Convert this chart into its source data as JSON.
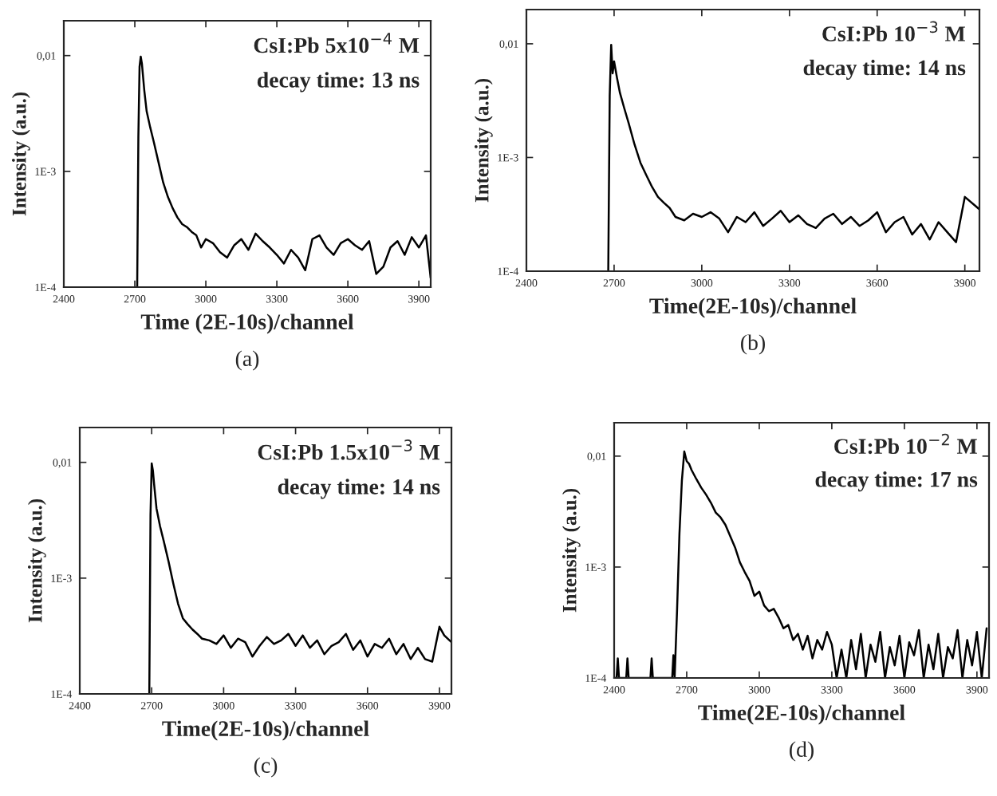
{
  "chart_data": [
    {
      "type": "line",
      "xlabel": "Time (2E-10s)/channel",
      "ylabel": "Intensity (a.u.)",
      "log": "y",
      "grid": false,
      "xlim": [
        2400,
        3950
      ],
      "ylim": [
        0.0001,
        0.02
      ],
      "xticks": [
        2400,
        2700,
        3000,
        3300,
        3600,
        3900
      ],
      "yticks": [
        {
          "value": 0.0001,
          "label": "1E-4"
        },
        {
          "value": 0.001,
          "label": "1E-3"
        },
        {
          "value": 0.01,
          "label": "0,01"
        }
      ],
      "annotations": [
        "CsI:Pb 5x10$^{−4}$ M",
        "decay time: 13 ns",
        "(a)"
      ],
      "series": [
        {
          "color": "#000000",
          "x": [
            2710,
            2715,
            2720,
            2725,
            2730,
            2740,
            2750,
            2765,
            2780,
            2800,
            2820,
            2840,
            2860,
            2880,
            2900,
            2920,
            2940,
            2960,
            2980,
            3000,
            3030,
            3060,
            3090,
            3120,
            3150,
            3180,
            3210,
            3240,
            3270,
            3300,
            3330,
            3360,
            3390,
            3420,
            3450,
            3480,
            3510,
            3540,
            3570,
            3600,
            3630,
            3660,
            3690,
            3720,
            3750,
            3780,
            3810,
            3840,
            3870,
            3900,
            3930,
            3950
          ],
          "values": [
            0.0001,
            0.002,
            0.008,
            0.0098,
            0.0085,
            0.005,
            0.0033,
            0.0024,
            0.0018,
            0.0012,
            0.0008,
            0.0006,
            0.00048,
            0.0004,
            0.00035,
            0.00033,
            0.0003,
            0.00028,
            0.00022,
            0.00026,
            0.00024,
            0.0002,
            0.00018,
            0.00023,
            0.00026,
            0.00021,
            0.00029,
            0.00025,
            0.00022,
            0.00019,
            0.00016,
            0.00021,
            0.00018,
            0.00014,
            0.00026,
            0.00028,
            0.00022,
            0.00019,
            0.00024,
            0.00026,
            0.00023,
            0.00021,
            0.00025,
            0.00013,
            0.00015,
            0.00022,
            0.00025,
            0.00019,
            0.00027,
            0.00022,
            0.00028,
            0.00012
          ]
        }
      ]
    },
    {
      "type": "line",
      "xlabel": "Time(2E-10s)/channel",
      "ylabel": "Intensity (a.u.)",
      "log": "y",
      "grid": false,
      "xlim": [
        2400,
        3950
      ],
      "ylim": [
        0.0001,
        0.02
      ],
      "xticks": [
        2400,
        2700,
        3000,
        3300,
        3600,
        3900
      ],
      "yticks": [
        {
          "value": 0.0001,
          "label": "1E-4"
        },
        {
          "value": 0.001,
          "label": "1E-3"
        },
        {
          "value": 0.01,
          "label": "0,01"
        }
      ],
      "annotations": [
        "CsI:Pb 10$^{−3}$ M",
        "decay time: 14 ns",
        "(b)"
      ],
      "series": [
        {
          "color": "#000000",
          "x": [
            2680,
            2685,
            2690,
            2695,
            2700,
            2710,
            2720,
            2735,
            2750,
            2770,
            2790,
            2810,
            2830,
            2850,
            2870,
            2890,
            2910,
            2940,
            2970,
            3000,
            3030,
            3060,
            3090,
            3120,
            3150,
            3180,
            3210,
            3240,
            3270,
            3300,
            3330,
            3360,
            3390,
            3420,
            3450,
            3480,
            3510,
            3540,
            3570,
            3600,
            3630,
            3660,
            3690,
            3720,
            3750,
            3780,
            3810,
            3840,
            3870,
            3900,
            3950
          ],
          "values": [
            0.0001,
            0.0035,
            0.0098,
            0.0055,
            0.007,
            0.005,
            0.0037,
            0.0027,
            0.002,
            0.0013,
            0.0009,
            0.0007,
            0.00055,
            0.00045,
            0.0004,
            0.00036,
            0.0003,
            0.00028,
            0.00032,
            0.0003,
            0.00033,
            0.00029,
            0.00022,
            0.0003,
            0.00027,
            0.00033,
            0.00025,
            0.00029,
            0.00034,
            0.00027,
            0.00031,
            0.00026,
            0.00024,
            0.00029,
            0.00032,
            0.00026,
            0.0003,
            0.00025,
            0.00028,
            0.00033,
            0.00022,
            0.00027,
            0.0003,
            0.00021,
            0.00026,
            0.00019,
            0.00027,
            0.00022,
            0.00018,
            0.00045,
            0.00035
          ]
        }
      ]
    },
    {
      "type": "line",
      "xlabel": "Time(2E-10s)/channel",
      "ylabel": "Intensity (a.u.)",
      "log": "y",
      "grid": false,
      "xlim": [
        2400,
        3950
      ],
      "ylim": [
        0.0001,
        0.02
      ],
      "xticks": [
        2400,
        2700,
        3000,
        3300,
        3600,
        3900
      ],
      "yticks": [
        {
          "value": 0.0001,
          "label": "1E-4"
        },
        {
          "value": 0.001,
          "label": "1E-3"
        },
        {
          "value": 0.01,
          "label": "0,01"
        }
      ],
      "annotations": [
        "CsI:Pb 1.5x10$^{−3}$ M",
        "decay time: 14 ns",
        "(c)"
      ],
      "series": [
        {
          "color": "#000000",
          "x": [
            2690,
            2695,
            2700,
            2705,
            2710,
            2720,
            2735,
            2750,
            2770,
            2790,
            2810,
            2830,
            2850,
            2870,
            2890,
            2910,
            2940,
            2970,
            3000,
            3030,
            3060,
            3090,
            3120,
            3150,
            3180,
            3210,
            3240,
            3270,
            3300,
            3330,
            3360,
            3390,
            3420,
            3450,
            3480,
            3510,
            3540,
            3570,
            3600,
            3630,
            3660,
            3690,
            3720,
            3750,
            3780,
            3810,
            3840,
            3870,
            3900,
            3920,
            3950
          ],
          "values": [
            0.0001,
            0.0035,
            0.0098,
            0.0085,
            0.0065,
            0.004,
            0.0028,
            0.0021,
            0.0014,
            0.0009,
            0.0006,
            0.00045,
            0.0004,
            0.00036,
            0.00033,
            0.0003,
            0.00029,
            0.00027,
            0.00032,
            0.00025,
            0.0003,
            0.00028,
            0.00021,
            0.00026,
            0.00031,
            0.00027,
            0.00029,
            0.00033,
            0.00026,
            0.00032,
            0.00025,
            0.00029,
            0.00022,
            0.00026,
            0.00028,
            0.00033,
            0.00024,
            0.00029,
            0.00021,
            0.00027,
            0.00025,
            0.0003,
            0.00022,
            0.00027,
            0.0002,
            0.00025,
            0.0002,
            0.00019,
            0.00038,
            0.00032,
            0.00028
          ]
        }
      ]
    },
    {
      "type": "line",
      "xlabel": "Time(2E-10s)/channel",
      "ylabel": "Intensity (a.u.)",
      "log": "y",
      "grid": false,
      "xlim": [
        2400,
        3950
      ],
      "ylim": [
        0.0001,
        0.02
      ],
      "xticks": [
        2400,
        2700,
        3000,
        3300,
        3600,
        3900
      ],
      "yticks": [
        {
          "value": 0.0001,
          "label": "1E-4"
        },
        {
          "value": 0.001,
          "label": "1E-3"
        },
        {
          "value": 0.01,
          "label": "0,01"
        }
      ],
      "annotations": [
        "CsI:Pb 10$^{−2}$ M",
        "decay time: 17 ns",
        "(d)"
      ],
      "series": [
        {
          "color": "#000000",
          "x": [
            2400,
            2410,
            2415,
            2420,
            2450,
            2455,
            2460,
            2550,
            2555,
            2560,
            2640,
            2645,
            2650,
            2660,
            2670,
            2680,
            2690,
            2700,
            2710,
            2720,
            2740,
            2760,
            2780,
            2800,
            2820,
            2840,
            2860,
            2880,
            2900,
            2920,
            2940,
            2960,
            2980,
            3000,
            3020,
            3040,
            3060,
            3080,
            3100,
            3120,
            3140,
            3160,
            3180,
            3200,
            3220,
            3240,
            3260,
            3280,
            3300,
            3320,
            3340,
            3360,
            3380,
            3400,
            3420,
            3440,
            3460,
            3480,
            3500,
            3520,
            3540,
            3560,
            3580,
            3600,
            3620,
            3640,
            3660,
            3680,
            3700,
            3720,
            3740,
            3760,
            3780,
            3800,
            3820,
            3840,
            3860,
            3880,
            3900,
            3920,
            3940
          ],
          "values": [
            0.0001,
            0.0001,
            0.00015,
            0.0001,
            0.0001,
            0.00015,
            0.0001,
            0.0001,
            0.00015,
            0.0001,
            0.0001,
            0.00016,
            0.0001,
            0.0004,
            0.002,
            0.006,
            0.011,
            0.009,
            0.0085,
            0.0075,
            0.0062,
            0.0052,
            0.0045,
            0.0038,
            0.0031,
            0.0028,
            0.0024,
            0.0019,
            0.0015,
            0.0011,
            0.0009,
            0.00075,
            0.00055,
            0.0006,
            0.00045,
            0.0004,
            0.00042,
            0.00035,
            0.00028,
            0.0003,
            0.00022,
            0.00025,
            0.00018,
            0.00024,
            0.00015,
            0.00022,
            0.00018,
            0.00026,
            0.0002,
            0.0001,
            0.00018,
            0.0001,
            0.00022,
            0.00012,
            0.00025,
            0.0001,
            0.0002,
            0.00014,
            0.00026,
            0.0001,
            0.00019,
            0.00013,
            0.00024,
            0.0001,
            0.00021,
            0.00016,
            0.00027,
            0.0001,
            0.0002,
            0.00012,
            0.00025,
            0.0001,
            0.00019,
            0.00015,
            0.00027,
            0.0001,
            0.00022,
            0.00013,
            0.00026,
            0.0001,
            0.00028
          ]
        }
      ]
    }
  ]
}
